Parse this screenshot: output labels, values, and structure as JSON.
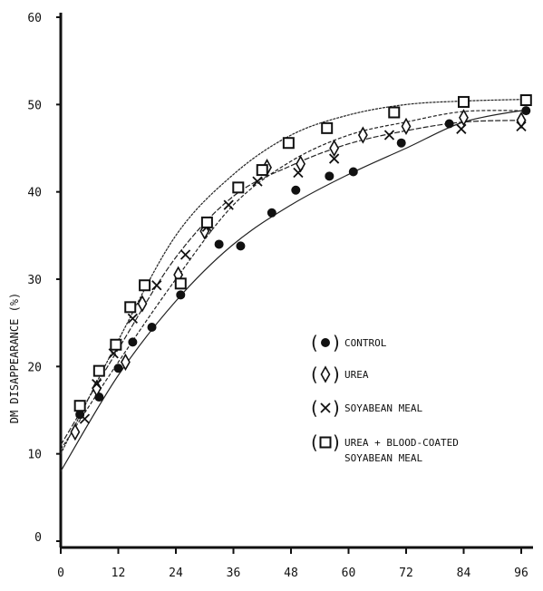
{
  "chart_data": {
    "type": "line",
    "title": "",
    "xlabel": "",
    "ylabel": "DM DISAPPEARANCE (%)",
    "xlim": [
      0,
      98
    ],
    "ylim": [
      0,
      60
    ],
    "x_ticks": [
      "0",
      "12",
      "24",
      "36",
      "48",
      "60",
      "72",
      "84",
      "96"
    ],
    "y_ticks": [
      "0",
      "10",
      "20",
      "30",
      "40",
      "50",
      "60"
    ],
    "grid": false,
    "legend_position": "center-right",
    "series": [
      {
        "name": "CONTROL",
        "marker": "filled-circle",
        "points": [
          [
            4,
            14.5
          ],
          [
            8,
            16.5
          ],
          [
            12,
            19.8
          ],
          [
            15,
            22.8
          ],
          [
            19,
            24.5
          ],
          [
            25,
            28.2
          ],
          [
            33,
            34
          ],
          [
            37.5,
            33.8
          ],
          [
            44,
            37.6
          ],
          [
            49,
            40.2
          ],
          [
            56,
            41.8
          ],
          [
            61,
            42.3
          ],
          [
            71,
            45.6
          ],
          [
            81,
            47.8
          ],
          [
            97,
            49.3
          ]
        ],
        "curve": [
          [
            0,
            8
          ],
          [
            12,
            19
          ],
          [
            24,
            27.5
          ],
          [
            36,
            34
          ],
          [
            48,
            38.5
          ],
          [
            60,
            42
          ],
          [
            72,
            45
          ],
          [
            84,
            48
          ],
          [
            97,
            49.4
          ]
        ]
      },
      {
        "name": "UREA",
        "marker": "diamond",
        "points": [
          [
            3,
            12.5
          ],
          [
            7.5,
            17.5
          ],
          [
            13.5,
            20.5
          ],
          [
            17,
            27.2
          ],
          [
            24.5,
            30.5
          ],
          [
            30,
            35.5
          ],
          [
            43,
            42.8
          ],
          [
            50,
            43.2
          ],
          [
            57,
            45
          ],
          [
            63,
            46.5
          ],
          [
            72,
            47.5
          ],
          [
            84,
            48.5
          ],
          [
            96,
            48.2
          ]
        ],
        "curve": [
          [
            0,
            10.5
          ],
          [
            12,
            20.5
          ],
          [
            24,
            30
          ],
          [
            36,
            38.5
          ],
          [
            48,
            43.5
          ],
          [
            60,
            46.5
          ],
          [
            72,
            48
          ],
          [
            84,
            49.2
          ],
          [
            97,
            49.3
          ]
        ]
      },
      {
        "name": "SOYABEAN MEAL",
        "marker": "cross",
        "points": [
          [
            5,
            14
          ],
          [
            7.5,
            18
          ],
          [
            11,
            21.5
          ],
          [
            15,
            25.5
          ],
          [
            20,
            29.3
          ],
          [
            26,
            32.8
          ],
          [
            30.5,
            36
          ],
          [
            35,
            38.5
          ],
          [
            41,
            41.2
          ],
          [
            49.5,
            42.2
          ],
          [
            57,
            43.8
          ],
          [
            68.5,
            46.5
          ],
          [
            83.5,
            47.2
          ],
          [
            96,
            47.5
          ]
        ],
        "curve": [
          [
            0,
            11
          ],
          [
            12,
            22
          ],
          [
            24,
            32.5
          ],
          [
            36,
            39.5
          ],
          [
            48,
            43
          ],
          [
            60,
            45.5
          ],
          [
            72,
            47
          ],
          [
            84,
            48
          ],
          [
            97,
            48.2
          ]
        ]
      },
      {
        "name": "UREA + BLOOD-COATED SOYABEAN MEAL",
        "marker": "square",
        "points": [
          [
            4,
            15.5
          ],
          [
            8,
            19.5
          ],
          [
            11.5,
            22.5
          ],
          [
            14.5,
            26.8
          ],
          [
            17.5,
            29.3
          ],
          [
            25,
            29.5
          ],
          [
            30.5,
            36.5
          ],
          [
            37,
            40.5
          ],
          [
            42,
            42.5
          ],
          [
            47.5,
            45.6
          ],
          [
            55.5,
            47.3
          ],
          [
            69.5,
            49.1
          ],
          [
            84,
            50.3
          ],
          [
            97,
            50.5
          ]
        ],
        "curve": [
          [
            0,
            10
          ],
          [
            12,
            23
          ],
          [
            24,
            35
          ],
          [
            36,
            42
          ],
          [
            48,
            46.5
          ],
          [
            60,
            48.8
          ],
          [
            72,
            50
          ],
          [
            84,
            50.4
          ],
          [
            97,
            50.6
          ]
        ]
      }
    ]
  }
}
